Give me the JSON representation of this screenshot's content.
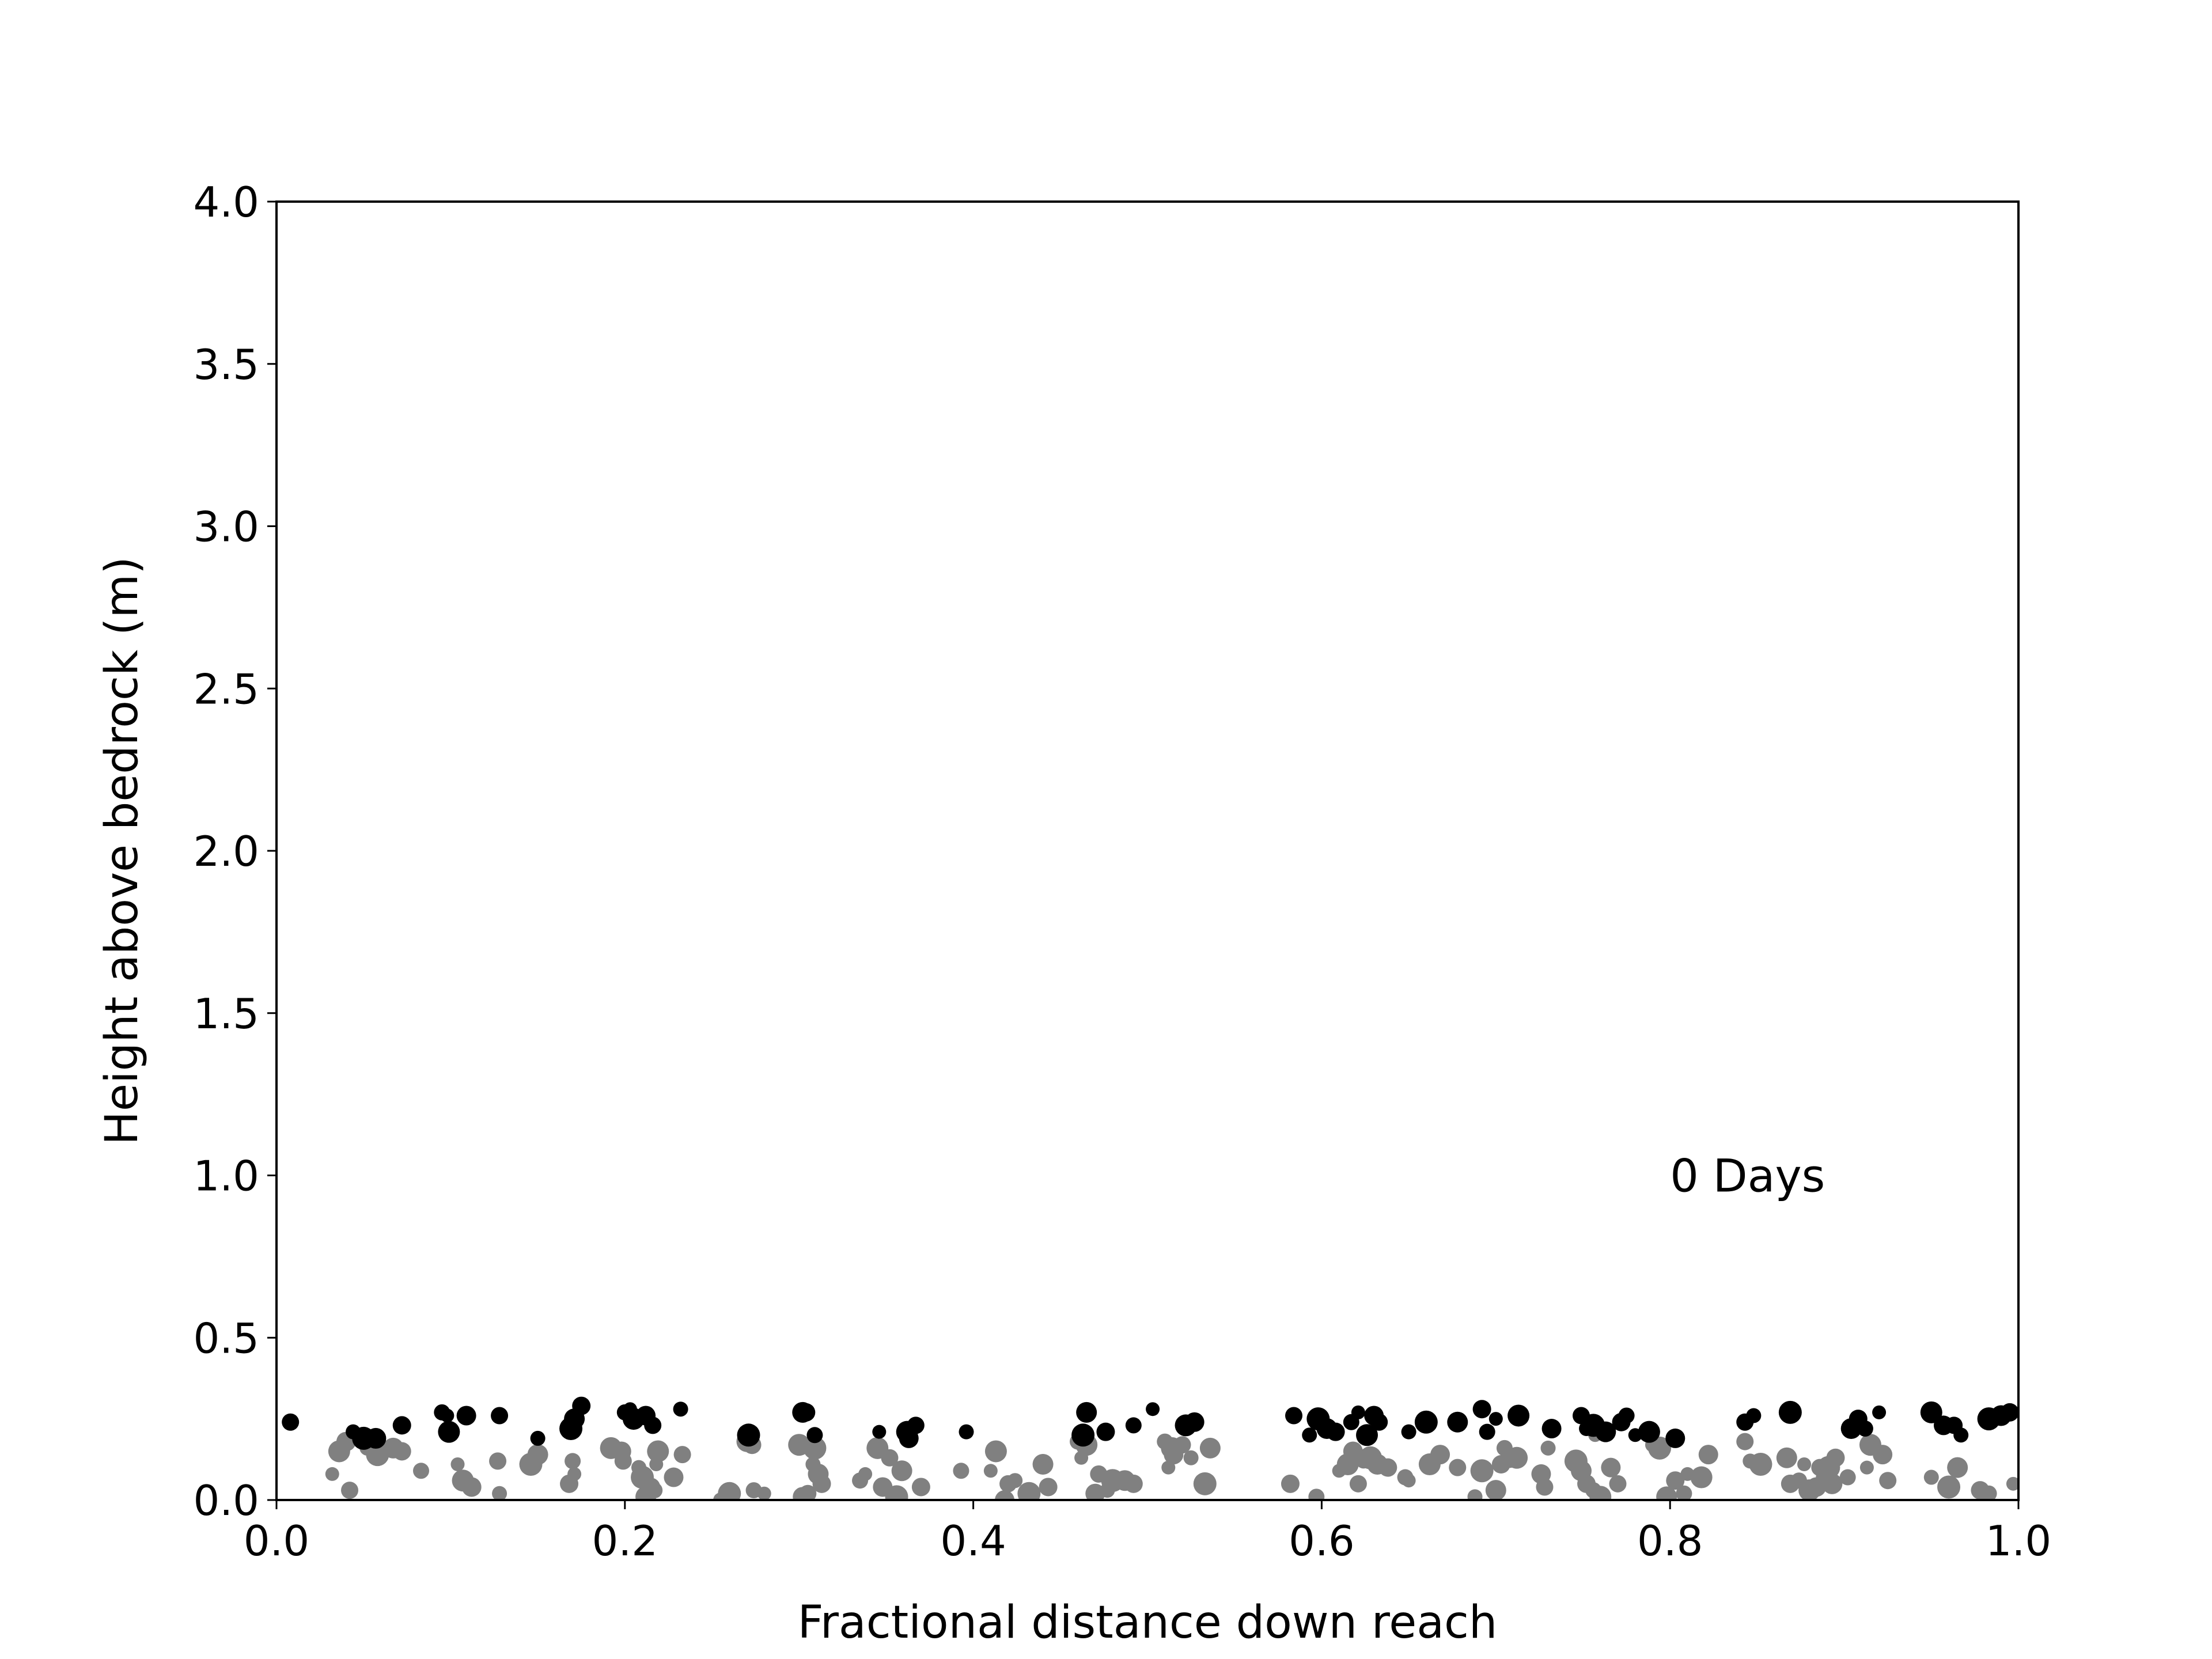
{
  "chart_data": {
    "type": "scatter",
    "title": "",
    "xlabel": "Fractional distance down reach",
    "ylabel": "Height above bedrock (m)",
    "xlim": [
      0.0,
      1.0
    ],
    "ylim": [
      0.0,
      4.0
    ],
    "xticks": [
      "0.0",
      "0.2",
      "0.4",
      "0.6",
      "0.8",
      "1.0"
    ],
    "yticks": [
      "0.0",
      "0.5",
      "1.0",
      "1.5",
      "2.0",
      "2.5",
      "3.0",
      "3.5",
      "4.0"
    ],
    "grid": false,
    "annotation": {
      "text": "0 Days",
      "x": 0.8,
      "y": 0.95
    },
    "series": [
      {
        "color": "#808080",
        "points": [
          [
            0.032,
            0.08
          ],
          [
            0.036,
            0.15
          ],
          [
            0.04,
            0.18
          ],
          [
            0.042,
            0.03
          ],
          [
            0.052,
            0.16
          ],
          [
            0.058,
            0.14
          ],
          [
            0.067,
            0.16
          ],
          [
            0.072,
            0.15
          ],
          [
            0.083,
            0.09
          ],
          [
            0.104,
            0.11
          ],
          [
            0.107,
            0.06
          ],
          [
            0.112,
            0.04
          ],
          [
            0.127,
            0.12
          ],
          [
            0.128,
            0.02
          ],
          [
            0.146,
            0.11
          ],
          [
            0.15,
            0.14
          ],
          [
            0.168,
            0.05
          ],
          [
            0.17,
            0.12
          ],
          [
            0.171,
            0.08
          ],
          [
            0.192,
            0.16
          ],
          [
            0.198,
            0.15
          ],
          [
            0.199,
            0.12
          ],
          [
            0.208,
            0.1
          ],
          [
            0.21,
            0.07
          ],
          [
            0.212,
            0.01
          ],
          [
            0.215,
            0.04
          ],
          [
            0.217,
            0.03
          ],
          [
            0.218,
            0.11
          ],
          [
            0.219,
            0.15
          ],
          [
            0.228,
            0.07
          ],
          [
            0.233,
            0.14
          ],
          [
            0.255,
            0.0
          ],
          [
            0.26,
            0.02
          ],
          [
            0.27,
            0.18
          ],
          [
            0.273,
            0.17
          ],
          [
            0.274,
            0.03
          ],
          [
            0.28,
            0.02
          ],
          [
            0.3,
            0.17
          ],
          [
            0.302,
            0.01
          ],
          [
            0.305,
            0.02
          ],
          [
            0.308,
            0.11
          ],
          [
            0.309,
            0.16
          ],
          [
            0.311,
            0.08
          ],
          [
            0.313,
            0.05
          ],
          [
            0.335,
            0.06
          ],
          [
            0.338,
            0.08
          ],
          [
            0.345,
            0.16
          ],
          [
            0.348,
            0.04
          ],
          [
            0.352,
            0.13
          ],
          [
            0.354,
            0.02
          ],
          [
            0.356,
            0.01
          ],
          [
            0.359,
            0.09
          ],
          [
            0.37,
            0.04
          ],
          [
            0.393,
            0.09
          ],
          [
            0.41,
            0.09
          ],
          [
            0.413,
            0.15
          ],
          [
            0.418,
            0.0
          ],
          [
            0.42,
            0.05
          ],
          [
            0.424,
            0.06
          ],
          [
            0.432,
            0.02
          ],
          [
            0.44,
            0.11
          ],
          [
            0.443,
            0.04
          ],
          [
            0.46,
            0.18
          ],
          [
            0.462,
            0.13
          ],
          [
            0.465,
            0.17
          ],
          [
            0.47,
            0.02
          ],
          [
            0.472,
            0.08
          ],
          [
            0.477,
            0.03
          ],
          [
            0.48,
            0.06
          ],
          [
            0.487,
            0.06
          ],
          [
            0.492,
            0.05
          ],
          [
            0.51,
            0.18
          ],
          [
            0.512,
            0.1
          ],
          [
            0.514,
            0.16
          ],
          [
            0.515,
            0.14
          ],
          [
            0.52,
            0.17
          ],
          [
            0.525,
            0.13
          ],
          [
            0.533,
            0.05
          ],
          [
            0.536,
            0.16
          ],
          [
            0.582,
            0.05
          ],
          [
            0.597,
            0.01
          ],
          [
            0.61,
            0.09
          ],
          [
            0.615,
            0.11
          ],
          [
            0.618,
            0.15
          ],
          [
            0.621,
            0.05
          ],
          [
            0.624,
            0.12
          ],
          [
            0.628,
            0.13
          ],
          [
            0.632,
            0.11
          ],
          [
            0.638,
            0.1
          ],
          [
            0.648,
            0.07
          ],
          [
            0.65,
            0.06
          ],
          [
            0.662,
            0.11
          ],
          [
            0.668,
            0.14
          ],
          [
            0.678,
            0.1
          ],
          [
            0.688,
            0.01
          ],
          [
            0.692,
            0.09
          ],
          [
            0.7,
            0.03
          ],
          [
            0.703,
            0.11
          ],
          [
            0.705,
            0.16
          ],
          [
            0.708,
            0.12
          ],
          [
            0.712,
            0.13
          ],
          [
            0.726,
            0.08
          ],
          [
            0.728,
            0.04
          ],
          [
            0.73,
            0.16
          ],
          [
            0.746,
            0.12
          ],
          [
            0.749,
            0.09
          ],
          [
            0.752,
            0.05
          ],
          [
            0.756,
            0.03
          ],
          [
            0.757,
            0.2
          ],
          [
            0.76,
            0.01
          ],
          [
            0.766,
            0.1
          ],
          [
            0.77,
            0.05
          ],
          [
            0.79,
            0.17
          ],
          [
            0.794,
            0.16
          ],
          [
            0.798,
            0.01
          ],
          [
            0.803,
            0.06
          ],
          [
            0.808,
            0.02
          ],
          [
            0.81,
            0.08
          ],
          [
            0.818,
            0.07
          ],
          [
            0.822,
            0.14
          ],
          [
            0.843,
            0.18
          ],
          [
            0.846,
            0.12
          ],
          [
            0.852,
            0.11
          ],
          [
            0.867,
            0.13
          ],
          [
            0.869,
            0.05
          ],
          [
            0.874,
            0.06
          ],
          [
            0.877,
            0.11
          ],
          [
            0.88,
            0.03
          ],
          [
            0.884,
            0.04
          ],
          [
            0.886,
            0.1
          ],
          [
            0.888,
            0.07
          ],
          [
            0.891,
            0.1
          ],
          [
            0.893,
            0.05
          ],
          [
            0.895,
            0.13
          ],
          [
            0.902,
            0.07
          ],
          [
            0.913,
            0.1
          ],
          [
            0.915,
            0.17
          ],
          [
            0.922,
            0.14
          ],
          [
            0.925,
            0.06
          ],
          [
            0.95,
            0.07
          ],
          [
            0.96,
            0.04
          ],
          [
            0.965,
            0.1
          ],
          [
            0.978,
            0.03
          ],
          [
            0.983,
            0.02
          ],
          [
            0.997,
            0.05
          ]
        ]
      },
      {
        "color": "#000000",
        "points": [
          [
            0.008,
            0.24
          ],
          [
            0.044,
            0.21
          ],
          [
            0.05,
            0.19
          ],
          [
            0.057,
            0.19
          ],
          [
            0.072,
            0.23
          ],
          [
            0.095,
            0.27
          ],
          [
            0.098,
            0.26
          ],
          [
            0.099,
            0.21
          ],
          [
            0.109,
            0.26
          ],
          [
            0.128,
            0.26
          ],
          [
            0.15,
            0.19
          ],
          [
            0.169,
            0.22
          ],
          [
            0.171,
            0.25
          ],
          [
            0.175,
            0.29
          ],
          [
            0.2,
            0.27
          ],
          [
            0.203,
            0.28
          ],
          [
            0.205,
            0.25
          ],
          [
            0.212,
            0.26
          ],
          [
            0.216,
            0.23
          ],
          [
            0.232,
            0.28
          ],
          [
            0.271,
            0.2
          ],
          [
            0.302,
            0.27
          ],
          [
            0.304,
            0.27
          ],
          [
            0.309,
            0.2
          ],
          [
            0.346,
            0.21
          ],
          [
            0.362,
            0.21
          ],
          [
            0.363,
            0.19
          ],
          [
            0.367,
            0.23
          ],
          [
            0.396,
            0.21
          ],
          [
            0.463,
            0.2
          ],
          [
            0.465,
            0.27
          ],
          [
            0.476,
            0.21
          ],
          [
            0.492,
            0.23
          ],
          [
            0.503,
            0.28
          ],
          [
            0.522,
            0.23
          ],
          [
            0.527,
            0.24
          ],
          [
            0.584,
            0.26
          ],
          [
            0.593,
            0.2
          ],
          [
            0.598,
            0.25
          ],
          [
            0.603,
            0.22
          ],
          [
            0.608,
            0.21
          ],
          [
            0.617,
            0.24
          ],
          [
            0.621,
            0.27
          ],
          [
            0.626,
            0.2
          ],
          [
            0.63,
            0.26
          ],
          [
            0.633,
            0.24
          ],
          [
            0.65,
            0.21
          ],
          [
            0.66,
            0.24
          ],
          [
            0.678,
            0.24
          ],
          [
            0.692,
            0.28
          ],
          [
            0.695,
            0.21
          ],
          [
            0.7,
            0.25
          ],
          [
            0.713,
            0.26
          ],
          [
            0.732,
            0.22
          ],
          [
            0.749,
            0.26
          ],
          [
            0.752,
            0.22
          ],
          [
            0.756,
            0.23
          ],
          [
            0.763,
            0.21
          ],
          [
            0.772,
            0.24
          ],
          [
            0.775,
            0.26
          ],
          [
            0.78,
            0.2
          ],
          [
            0.788,
            0.21
          ],
          [
            0.803,
            0.19
          ],
          [
            0.843,
            0.24
          ],
          [
            0.848,
            0.26
          ],
          [
            0.869,
            0.27
          ],
          [
            0.904,
            0.22
          ],
          [
            0.908,
            0.25
          ],
          [
            0.912,
            0.22
          ],
          [
            0.92,
            0.27
          ],
          [
            0.95,
            0.27
          ],
          [
            0.957,
            0.23
          ],
          [
            0.963,
            0.23
          ],
          [
            0.967,
            0.2
          ],
          [
            0.983,
            0.25
          ],
          [
            0.99,
            0.26
          ],
          [
            0.995,
            0.27
          ]
        ]
      }
    ]
  }
}
